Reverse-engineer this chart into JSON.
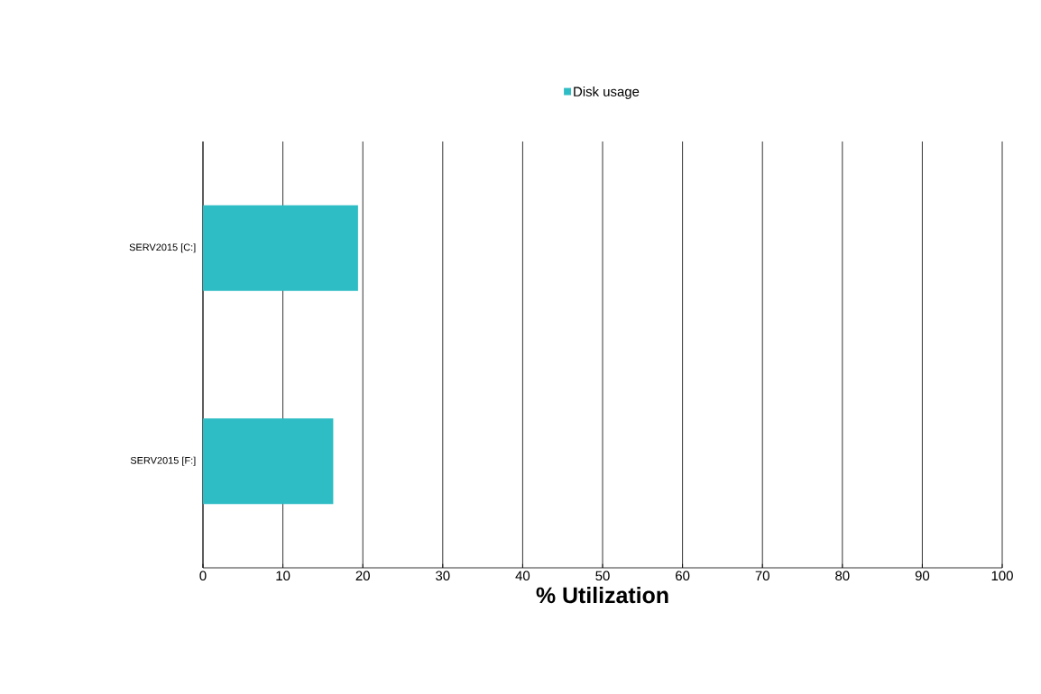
{
  "chart_data": {
    "type": "bar",
    "orientation": "horizontal",
    "xlabel": "% Utilization",
    "categories": [
      "SERV2015 [C:]",
      "SERV2015 [F:]"
    ],
    "series": [
      {
        "name": "Disk usage",
        "color": "#2ebdc4",
        "values": [
          19.4,
          16.3
        ]
      }
    ],
    "xlim": [
      0,
      100
    ],
    "xticks": [
      0,
      10,
      20,
      30,
      40,
      50,
      60,
      70,
      80,
      90,
      100
    ],
    "grid": "x",
    "legend": "top"
  }
}
